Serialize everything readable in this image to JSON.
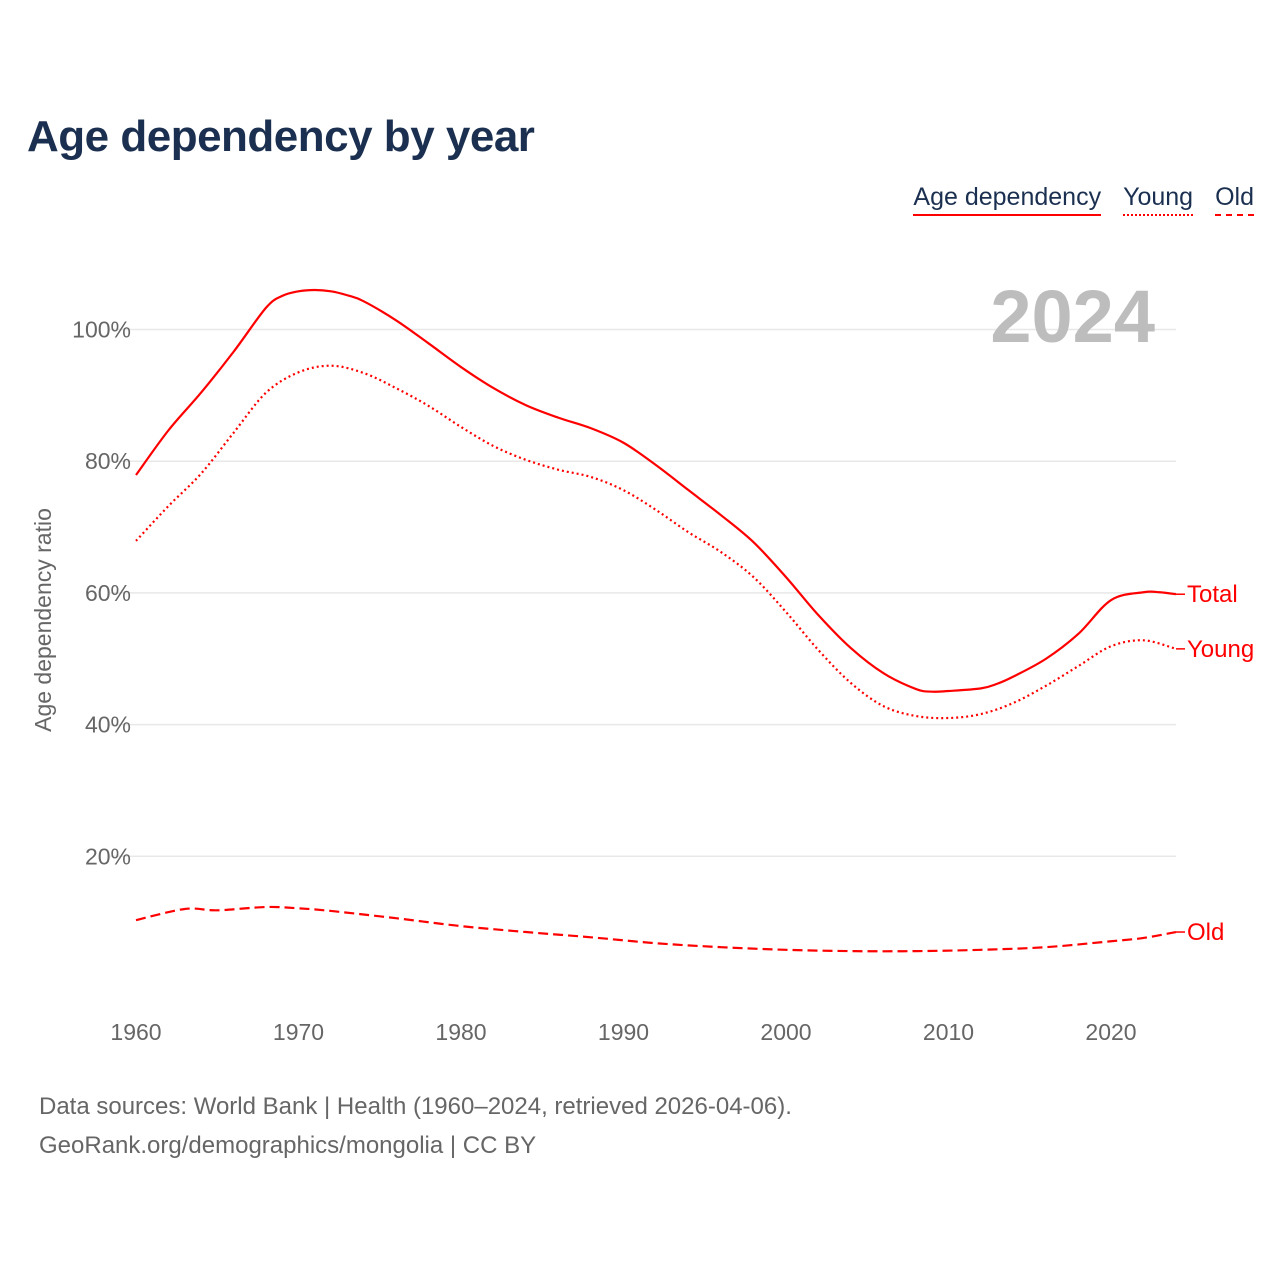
{
  "title": "Age dependency by year",
  "legend": [
    {
      "label": "Age dependency",
      "style": "solid"
    },
    {
      "label": "Young",
      "style": "dotted"
    },
    {
      "label": "Old",
      "style": "dashed"
    }
  ],
  "year_label": "2024",
  "footer": {
    "line1": "Data sources: World Bank | Health (1960–2024, retrieved 2026-04-06).",
    "line2": "GeoRank.org/demographics/mongolia | CC BY"
  },
  "chart_data": {
    "type": "line",
    "title": "Age dependency by year",
    "xlabel": "",
    "ylabel": "Age dependency ratio",
    "xlim": [
      1960,
      2024
    ],
    "ylim": [
      0,
      110
    ],
    "xticks": [
      1960,
      1970,
      1980,
      1990,
      2000,
      2010,
      2020
    ],
    "yticks": [
      20,
      40,
      60,
      80,
      100
    ],
    "ytick_labels": [
      "20%",
      "40%",
      "60%",
      "80%",
      "100%"
    ],
    "grid": true,
    "color": "#ff0000",
    "series": [
      {
        "name": "Total",
        "style": "solid",
        "x": [
          1960,
          1962,
          1964,
          1966,
          1968,
          1969,
          1970,
          1971,
          1972,
          1973,
          1974,
          1976,
          1978,
          1980,
          1982,
          1984,
          1986,
          1988,
          1990,
          1992,
          1994,
          1996,
          1998,
          2000,
          2002,
          2004,
          2006,
          2008,
          2009,
          2010,
          2012,
          2013,
          2014,
          2016,
          2018,
          2020,
          2022,
          2023,
          2024
        ],
        "y": [
          77.9,
          84.7,
          90.4,
          96.6,
          103.3,
          105.1,
          105.8,
          106.0,
          105.8,
          105.2,
          104.3,
          101.4,
          97.9,
          94.3,
          91.1,
          88.5,
          86.6,
          85.0,
          82.8,
          79.4,
          75.6,
          71.8,
          67.7,
          62.4,
          56.6,
          51.6,
          47.8,
          45.4,
          45.0,
          45.1,
          45.5,
          46.2,
          47.3,
          50.0,
          53.8,
          58.9,
          60.1,
          60.1,
          59.8
        ]
      },
      {
        "name": "Young",
        "style": "dotted",
        "x": [
          1960,
          1962,
          1964,
          1966,
          1968,
          1970,
          1972,
          1974,
          1976,
          1978,
          1980,
          1982,
          1984,
          1986,
          1988,
          1990,
          1992,
          1994,
          1996,
          1998,
          2000,
          2002,
          2004,
          2006,
          2008,
          2010,
          2012,
          2014,
          2016,
          2018,
          2020,
          2022,
          2024
        ],
        "y": [
          67.9,
          73.2,
          78.1,
          84.3,
          90.4,
          93.5,
          94.5,
          93.4,
          91.1,
          88.4,
          85.2,
          82.3,
          80.2,
          78.7,
          77.6,
          75.6,
          72.6,
          69.2,
          66.2,
          62.4,
          57.1,
          51.3,
          46.3,
          42.8,
          41.3,
          41.0,
          41.6,
          43.3,
          45.9,
          48.9,
          51.9,
          52.8,
          51.5
        ]
      },
      {
        "name": "Old",
        "style": "dashed",
        "x": [
          1960,
          1963,
          1965,
          1968,
          1970,
          1972,
          1976,
          1980,
          1984,
          1988,
          1992,
          1996,
          2000,
          2004,
          2008,
          2012,
          2016,
          2020,
          2022,
          2024
        ],
        "y": [
          10.3,
          12.0,
          11.8,
          12.3,
          12.1,
          11.7,
          10.6,
          9.4,
          8.5,
          7.7,
          6.8,
          6.2,
          5.8,
          5.6,
          5.6,
          5.8,
          6.2,
          7.1,
          7.6,
          8.5
        ]
      }
    ]
  }
}
